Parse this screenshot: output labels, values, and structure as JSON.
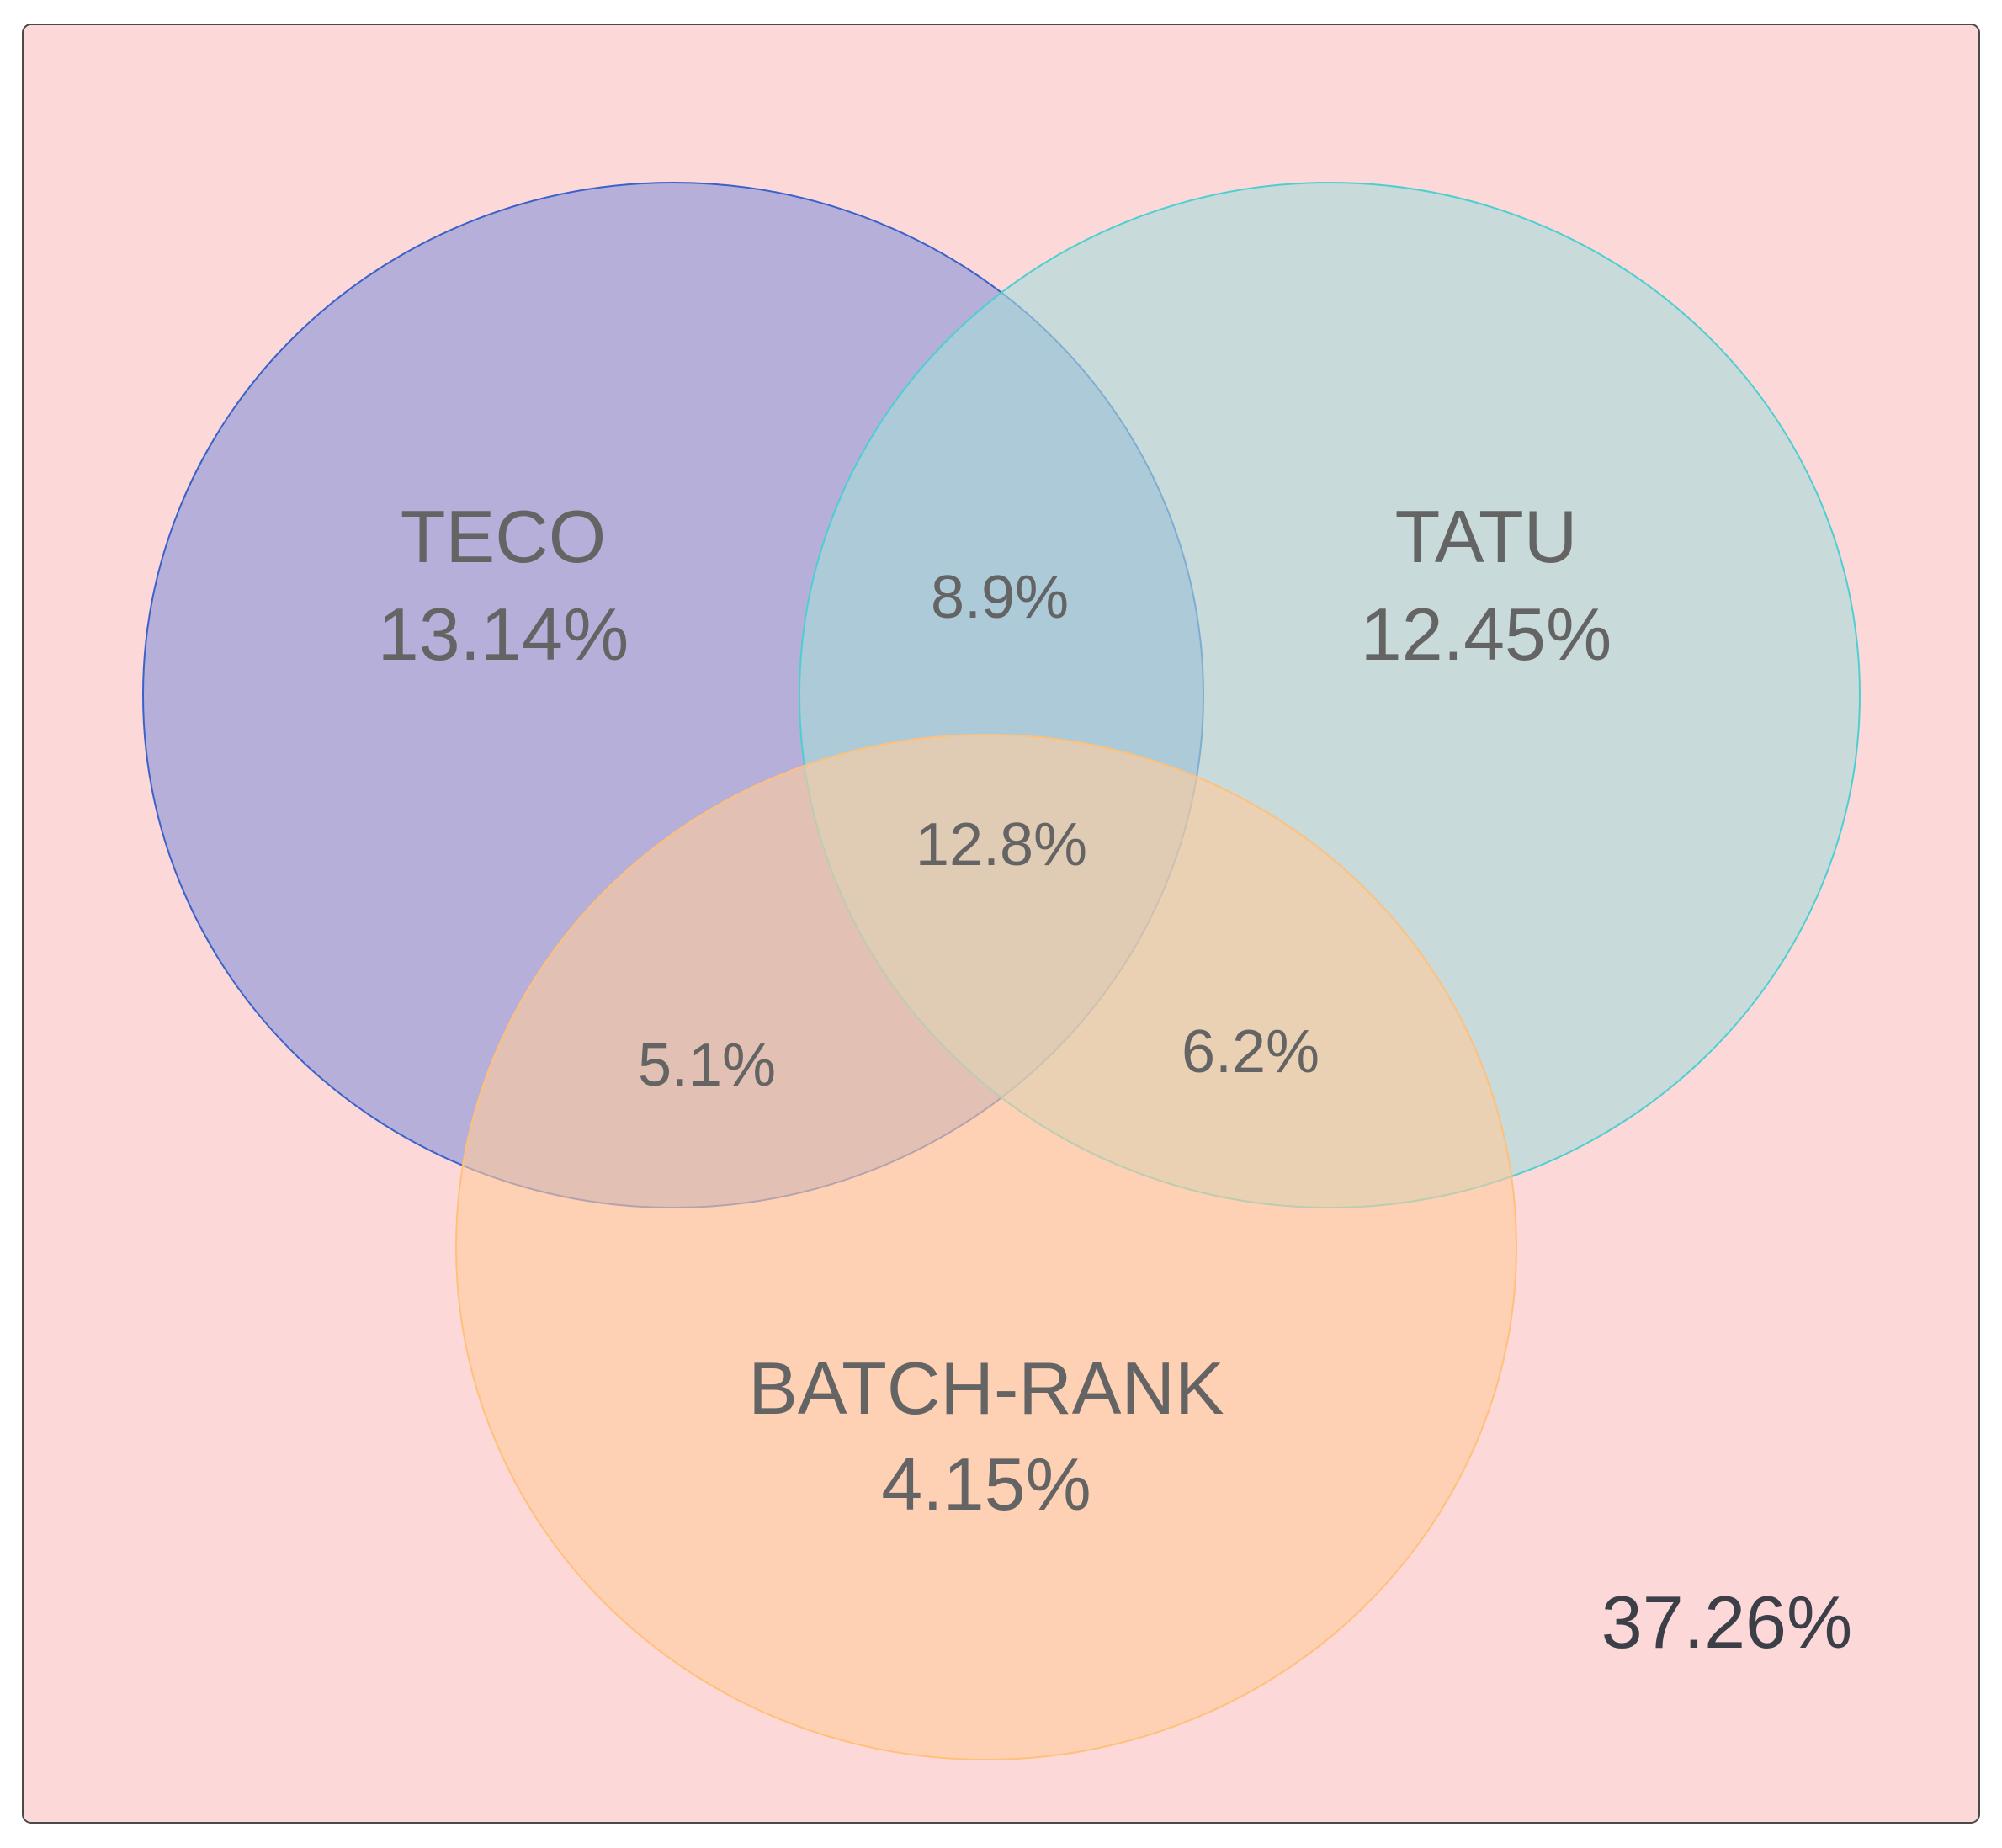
{
  "diagram": {
    "type": "venn-3",
    "colors": {
      "background": "#fdd8d9",
      "frame_stroke": "#4a4a4a",
      "teco_fill": "#8a96d8",
      "teco_stroke": "#3a62c8",
      "tatu_fill": "#a8dcd8",
      "tatu_stroke": "#4ccfd2",
      "batch_rank_fill": "#ffcc9c",
      "batch_rank_stroke": "#ffc07a",
      "label_text": "#646464",
      "outside_text": "#3c3f48"
    },
    "sets": [
      {
        "id": "teco",
        "name": "TECO",
        "only_pct": "13.14%"
      },
      {
        "id": "tatu",
        "name": "TATU",
        "only_pct": "12.45%"
      },
      {
        "id": "batch_rank",
        "name": "BATCH-RANK",
        "only_pct": "4.15%"
      }
    ],
    "overlaps": {
      "teco_tatu": "8.9%",
      "teco_batch_rank": "5.1%",
      "tatu_batch_rank": "6.2%",
      "all_three": "12.8%"
    },
    "outside_pct": "37.26%"
  }
}
